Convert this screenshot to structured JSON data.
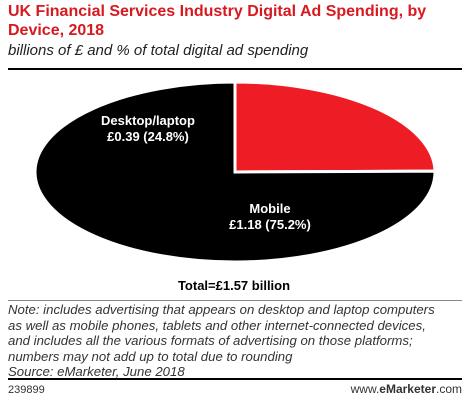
{
  "header": {
    "title": "UK Financial Services Industry Digital Ad Spending, by Device, 2018",
    "subtitle": "billions of £ and % of total digital ad spending"
  },
  "chart_data": {
    "type": "pie",
    "title": "UK Financial Services Industry Digital Ad Spending, by Device, 2018",
    "subtitle": "billions of £ and % of total digital ad spending",
    "unit": "£ billions",
    "slices": [
      {
        "name": "Desktop/laptop",
        "value": 0.39,
        "percent": 24.8,
        "value_label": "£0.39 (24.8%)",
        "color": "#ee1c24"
      },
      {
        "name": "Mobile",
        "value": 1.18,
        "percent": 75.2,
        "value_label": "£1.18 (75.2%)",
        "color": "#000000"
      }
    ],
    "total_label": "Total=£1.57 billion"
  },
  "footer": {
    "notes": [
      "Note: includes advertising that appears on desktop and laptop computers",
      "as well as mobile phones, tablets and other internet-connected devices,",
      "and includes all the various formats of advertising on those platforms;",
      "numbers may not add up to total due to rounding",
      "Source: eMarketer, June 2018"
    ],
    "chart_id": "239899",
    "brand_prefix": "www.",
    "brand_name": "eMarketer",
    "brand_suffix": ".com"
  }
}
